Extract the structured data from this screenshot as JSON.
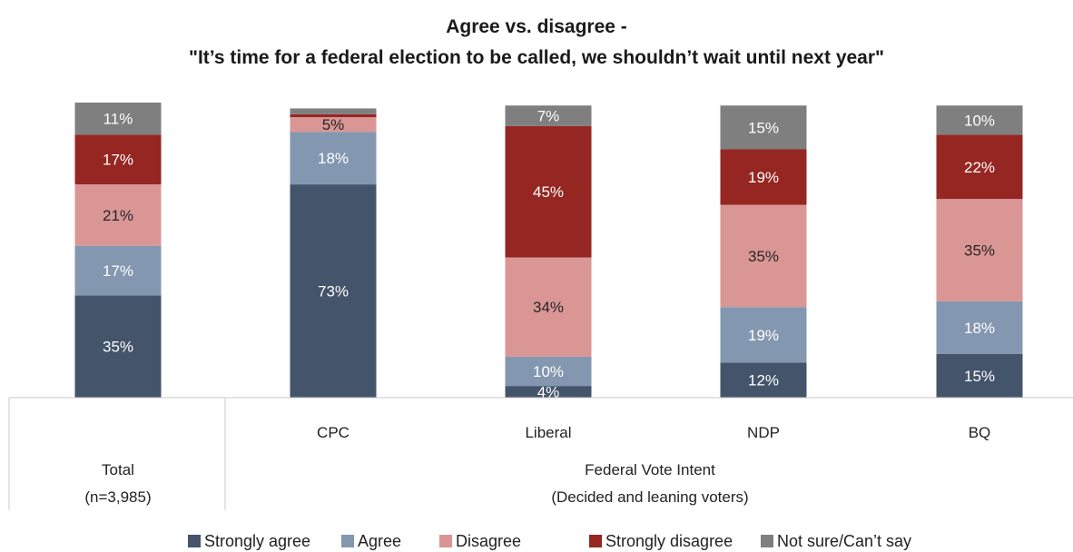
{
  "chart_data": {
    "type": "bar",
    "stacked": true,
    "title": "Agree vs. disagree -",
    "subtitle": "\"It’s time for a federal election to be called, we shouldn’t wait until next year\"",
    "categories": [
      "",
      "CPC",
      "Liberal",
      "NDP",
      "BQ"
    ],
    "groups": [
      {
        "line1": "Total",
        "line2": "(n=3,985)",
        "categories": [
          ""
        ]
      },
      {
        "line1": "Federal Vote Intent",
        "line2": "(Decided and leaning voters)",
        "categories": [
          "CPC",
          "Liberal",
          "NDP",
          "BQ"
        ]
      }
    ],
    "series": [
      {
        "name": "Strongly agree",
        "color": "#44546a",
        "label_color": "#ffffff",
        "values": [
          35,
          73,
          4,
          12,
          15
        ],
        "labels": [
          "35%",
          "73%",
          "4%",
          "12%",
          "15%"
        ]
      },
      {
        "name": "Agree",
        "color": "#8497b0",
        "label_color": "#ffffff",
        "values": [
          17,
          18,
          10,
          19,
          18
        ],
        "labels": [
          "17%",
          "18%",
          "10%",
          "19%",
          "18%"
        ]
      },
      {
        "name": "Disagree",
        "color": "#da9694",
        "label_color": "#262626",
        "values": [
          21,
          5,
          34,
          35,
          35
        ],
        "labels": [
          "21%",
          "5%",
          "34%",
          "35%",
          "35%"
        ]
      },
      {
        "name": "Strongly disagree",
        "color": "#952622",
        "label_color": "#ffffff",
        "values": [
          17,
          1,
          45,
          19,
          22
        ],
        "labels": [
          "17%",
          "",
          "45%",
          "19%",
          "22%"
        ]
      },
      {
        "name": "Not sure/Can’t say",
        "color": "#7f7f7f",
        "label_color": "#ffffff",
        "values": [
          11,
          2,
          7,
          15,
          10
        ],
        "labels": [
          "11%",
          "",
          "7%",
          "15%",
          "10%"
        ]
      }
    ],
    "ylim": [
      0,
      101
    ],
    "grid": false,
    "legend_position": "bottom"
  }
}
